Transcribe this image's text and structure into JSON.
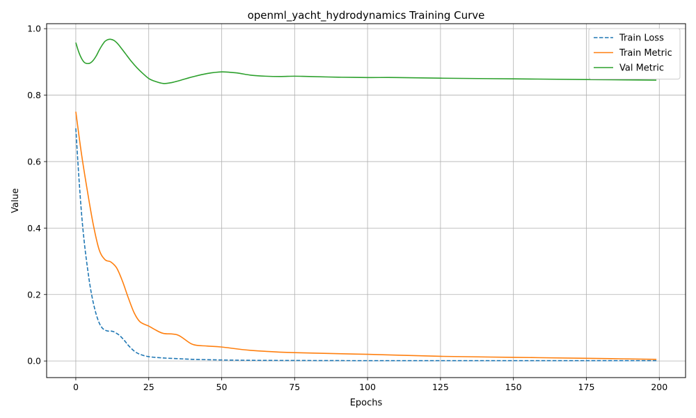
{
  "chart_data": {
    "type": "line",
    "title": "openml_yacht_hydrodynamics Training Curve",
    "xlabel": "Epochs",
    "ylabel": "Value",
    "xlim": [
      -10,
      209
    ],
    "ylim": [
      -0.05,
      1.015
    ],
    "xticks": [
      0,
      25,
      50,
      75,
      100,
      125,
      150,
      175,
      200
    ],
    "yticks": [
      0.0,
      0.2,
      0.4,
      0.6,
      0.8,
      1.0
    ],
    "xtick_labels": [
      "0",
      "25",
      "50",
      "75",
      "100",
      "125",
      "150",
      "175",
      "200"
    ],
    "ytick_labels": [
      "0.0",
      "0.2",
      "0.4",
      "0.6",
      "0.8",
      "1.0"
    ],
    "grid": true,
    "legend_position": "top-right",
    "series": [
      {
        "name": "Train Loss",
        "color": "#1f77b4",
        "dash": "dashed",
        "x": [
          0,
          1,
          2,
          3,
          4,
          5,
          6,
          7,
          8,
          9,
          10,
          11,
          12,
          13,
          14,
          15,
          16,
          17,
          18,
          20,
          22,
          25,
          30,
          35,
          40,
          50,
          60,
          75,
          100,
          125,
          150,
          175,
          199
        ],
        "y": [
          0.7,
          0.56,
          0.44,
          0.35,
          0.28,
          0.22,
          0.175,
          0.14,
          0.115,
          0.1,
          0.093,
          0.09,
          0.09,
          0.088,
          0.083,
          0.077,
          0.068,
          0.058,
          0.047,
          0.03,
          0.02,
          0.013,
          0.009,
          0.007,
          0.005,
          0.003,
          0.002,
          0.0015,
          0.001,
          0.001,
          0.001,
          0.001,
          0.001
        ]
      },
      {
        "name": "Train Metric",
        "color": "#ff7f0e",
        "dash": "solid",
        "x": [
          0,
          2,
          4,
          6,
          8,
          10,
          12,
          14,
          16,
          18,
          20,
          22,
          25,
          27,
          30,
          35,
          40,
          45,
          50,
          60,
          75,
          100,
          125,
          150,
          175,
          199
        ],
        "y": [
          0.75,
          0.62,
          0.51,
          0.41,
          0.335,
          0.305,
          0.298,
          0.28,
          0.24,
          0.19,
          0.145,
          0.118,
          0.105,
          0.095,
          0.083,
          0.078,
          0.05,
          0.045,
          0.042,
          0.032,
          0.025,
          0.02,
          0.014,
          0.011,
          0.008,
          0.005
        ]
      },
      {
        "name": "Val Metric",
        "color": "#2ca02c",
        "dash": "solid",
        "x": [
          0,
          1,
          2,
          3,
          4,
          5,
          6,
          7,
          8,
          9,
          10,
          11,
          12,
          13,
          14,
          15,
          17,
          19,
          21,
          23,
          25,
          27,
          30,
          33,
          36,
          40,
          45,
          50,
          55,
          60,
          65,
          70,
          75,
          80,
          90,
          100,
          110,
          125,
          150,
          175,
          199
        ],
        "y": [
          0.958,
          0.93,
          0.91,
          0.898,
          0.895,
          0.897,
          0.905,
          0.918,
          0.935,
          0.95,
          0.962,
          0.967,
          0.968,
          0.965,
          0.958,
          0.948,
          0.925,
          0.902,
          0.882,
          0.865,
          0.85,
          0.842,
          0.835,
          0.838,
          0.845,
          0.855,
          0.865,
          0.87,
          0.867,
          0.86,
          0.857,
          0.856,
          0.857,
          0.856,
          0.854,
          0.853,
          0.853,
          0.851,
          0.849,
          0.847,
          0.845
        ]
      }
    ]
  }
}
